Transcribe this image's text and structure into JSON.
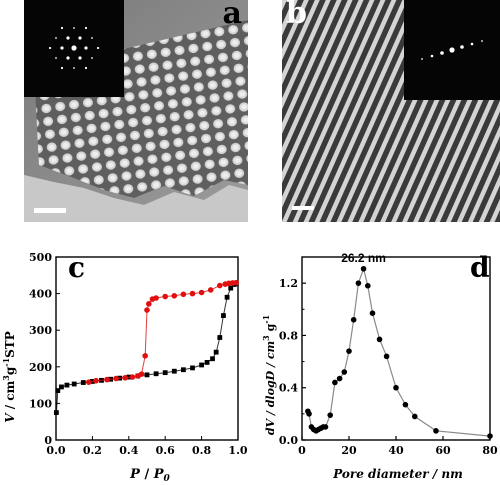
{
  "panels": {
    "a": {
      "letter": "a"
    },
    "b": {
      "letter": "b"
    }
  },
  "chart_data": [
    {
      "id": "c",
      "letter": "c",
      "type": "scatter",
      "xlabel_main": "P",
      "xlabel_sep": " / ",
      "xlabel_sym": "P",
      "xlabel_sub": "0",
      "ylabel": "V / cm3g-1STP",
      "ylabel_parts": [
        "V",
        " / cm",
        "3",
        "g",
        "-1",
        "STP"
      ],
      "xlim": [
        0.0,
        1.0
      ],
      "ylim": [
        0,
        500
      ],
      "xticks": [
        "0.0",
        "0.2",
        "0.4",
        "0.6",
        "0.8",
        "1.0"
      ],
      "yticks": [
        "0",
        "100",
        "200",
        "300",
        "400",
        "500"
      ],
      "grid": false,
      "series": [
        {
          "color": "#000000",
          "x": [
            0.002,
            0.01,
            0.03,
            0.06,
            0.1,
            0.15,
            0.2,
            0.25,
            0.3,
            0.35,
            0.4,
            0.45,
            0.5,
            0.55,
            0.6,
            0.65,
            0.7,
            0.75,
            0.8,
            0.83,
            0.86,
            0.88,
            0.9,
            0.92,
            0.94,
            0.96,
            0.98,
            0.99
          ],
          "y": [
            75,
            135,
            145,
            150,
            153,
            157,
            160,
            163,
            166,
            169,
            172,
            175,
            178,
            181,
            184,
            188,
            192,
            197,
            205,
            212,
            222,
            240,
            280,
            340,
            390,
            415,
            425,
            428
          ]
        },
        {
          "color": "#e01010",
          "x": [
            0.99,
            0.97,
            0.95,
            0.93,
            0.9,
            0.85,
            0.8,
            0.75,
            0.7,
            0.65,
            0.6,
            0.55,
            0.53,
            0.51,
            0.5,
            0.49,
            0.47,
            0.45,
            0.42,
            0.38,
            0.33,
            0.28,
            0.22,
            0.18
          ],
          "y": [
            430,
            429,
            428,
            426,
            422,
            410,
            403,
            400,
            398,
            394,
            392,
            388,
            385,
            372,
            355,
            230,
            180,
            175,
            172,
            170,
            168,
            165,
            162,
            158
          ]
        }
      ]
    },
    {
      "id": "d",
      "letter": "d",
      "type": "line",
      "xlabel": "Pore diameter / nm",
      "ylabel_parts": [
        "dV / dlogD / cm",
        "3",
        " g",
        "-1"
      ],
      "xlim": [
        0,
        80
      ],
      "ylim": [
        0.0,
        1.4
      ],
      "xticks": [
        "0",
        "20",
        "40",
        "60",
        "80"
      ],
      "yticks": [
        "0.0",
        "0.4",
        "0.8",
        "1.2"
      ],
      "yticks_minor": [
        0.2,
        0.6,
        1.0,
        1.4
      ],
      "grid": false,
      "annotation": "26.2 nm",
      "annotation_at": [
        26.2,
        1.3
      ],
      "series": [
        {
          "color": "#000000",
          "x": [
            2.5,
            3,
            4,
            5,
            6,
            7,
            8,
            9,
            10,
            12,
            14,
            16,
            18,
            20,
            22,
            24,
            26.2,
            28,
            30,
            33,
            36,
            40,
            44,
            48,
            57,
            80
          ],
          "y": [
            0.22,
            0.2,
            0.1,
            0.08,
            0.07,
            0.08,
            0.09,
            0.1,
            0.1,
            0.19,
            0.44,
            0.47,
            0.52,
            0.68,
            0.92,
            1.2,
            1.31,
            1.18,
            0.97,
            0.77,
            0.64,
            0.4,
            0.27,
            0.18,
            0.07,
            0.03
          ]
        }
      ]
    }
  ]
}
